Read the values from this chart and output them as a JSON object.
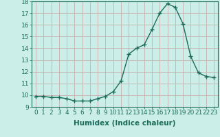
{
  "x": [
    0,
    1,
    2,
    3,
    4,
    5,
    6,
    7,
    8,
    9,
    10,
    11,
    12,
    13,
    14,
    15,
    16,
    17,
    18,
    19,
    20,
    21,
    22,
    23
  ],
  "y": [
    9.9,
    9.9,
    9.8,
    9.8,
    9.7,
    9.5,
    9.5,
    9.5,
    9.7,
    9.9,
    10.3,
    11.2,
    13.5,
    14.0,
    14.3,
    15.6,
    17.0,
    17.8,
    17.5,
    16.1,
    13.3,
    11.9,
    11.6,
    11.5
  ],
  "ylim": [
    9,
    18
  ],
  "yticks": [
    9,
    10,
    11,
    12,
    13,
    14,
    15,
    16,
    17,
    18
  ],
  "xticks": [
    0,
    1,
    2,
    3,
    4,
    5,
    6,
    7,
    8,
    9,
    10,
    11,
    12,
    13,
    14,
    15,
    16,
    17,
    18,
    19,
    20,
    21,
    22,
    23
  ],
  "xlabel": "Humidex (Indice chaleur)",
  "line_color": "#1a6b5a",
  "marker": "+",
  "marker_size": 4,
  "bg_color": "#cceee8",
  "grid_color_h": "#c8b8b8",
  "grid_color_v": "#c8b8b8",
  "tick_label_fontsize": 6.5,
  "xlabel_fontsize": 7.5
}
